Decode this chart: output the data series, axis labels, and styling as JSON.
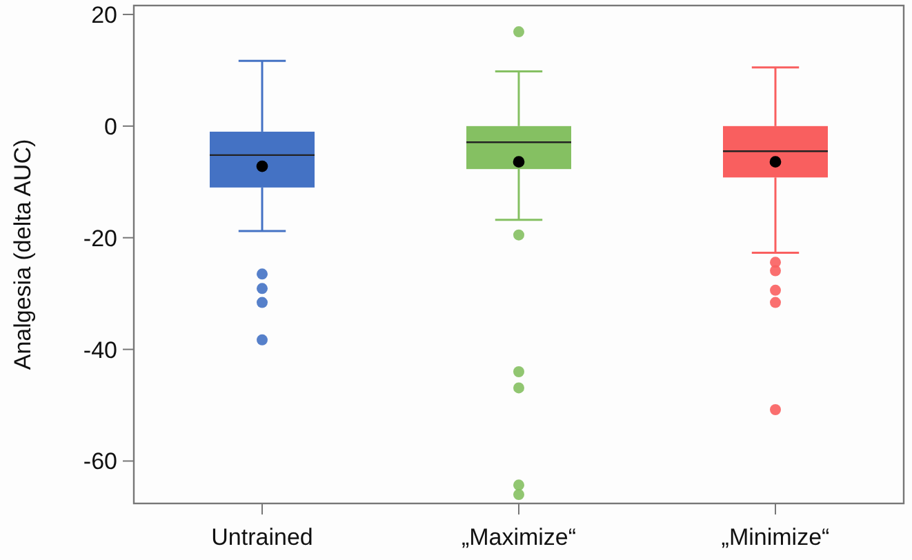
{
  "chart_data": {
    "type": "box",
    "ylabel": "Analgesia (delta AUC)",
    "categories": [
      "Untrained",
      "„Maximize“",
      "„Minimize“"
    ],
    "colors": [
      "#4472c4",
      "#85c062",
      "#f95f5f"
    ],
    "boxes": [
      {
        "low": -18.8,
        "q1": -11.0,
        "median": -5.2,
        "q3": -1.0,
        "high": 11.7,
        "mean": -7.2,
        "outliers": [
          -26.5,
          -29.1,
          -31.6,
          -38.3
        ]
      },
      {
        "low": -16.8,
        "q1": -7.7,
        "median": -2.9,
        "q3": 0,
        "high": 9.8,
        "mean": -6.4,
        "outliers": [
          16.9,
          -19.5,
          -44.0,
          -46.9,
          -64.3,
          -66.0
        ]
      },
      {
        "low": -22.7,
        "q1": -9.2,
        "median": -4.5,
        "q3": 0,
        "high": 10.5,
        "mean": -6.4,
        "outliers": [
          -24.4,
          -25.9,
          -29.4,
          -31.6,
          -50.8
        ]
      }
    ],
    "ylim": [
      -67.6,
      21.6
    ],
    "yticks": [
      -60,
      -40,
      -20,
      0,
      20
    ]
  }
}
